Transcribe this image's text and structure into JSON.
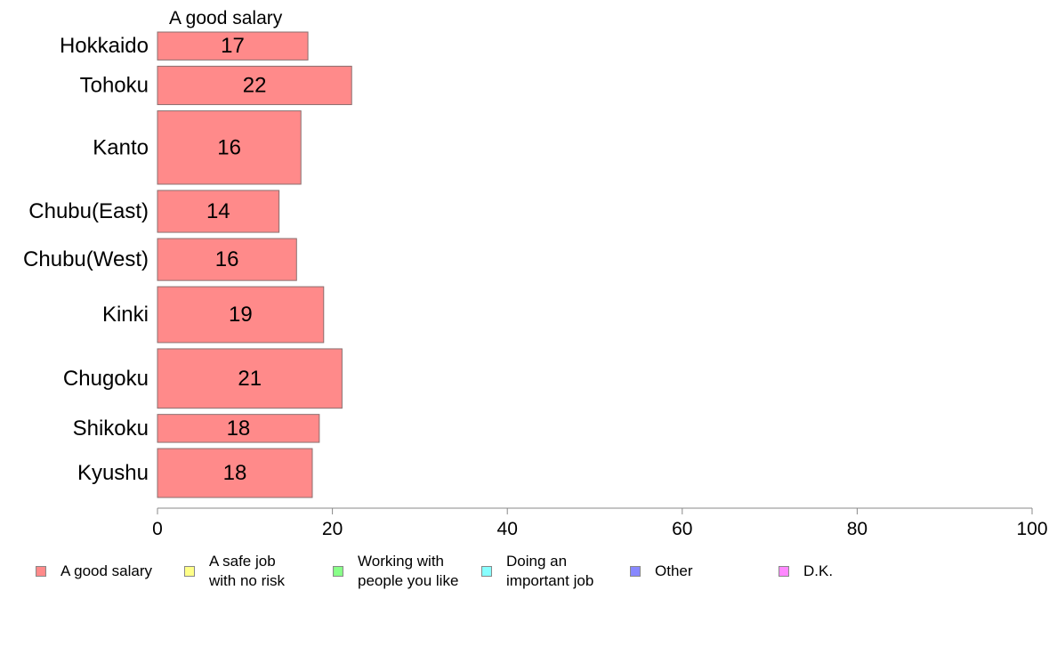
{
  "chart_data": {
    "type": "bar",
    "orientation": "horizontal",
    "title": "A good salary",
    "categories": [
      "Hokkaido",
      "Tohoku",
      "Kanto",
      "Chubu(East)",
      "Chubu(West)",
      "Kinki",
      "Chugoku",
      "Shikoku",
      "Kyushu"
    ],
    "series": [
      {
        "name": "A good salary",
        "color": "#ff8a8a",
        "values": [
          17.2,
          22.2,
          16.4,
          13.9,
          15.9,
          19.0,
          21.1,
          18.5,
          17.7
        ],
        "labels": [
          "17",
          "22",
          "16",
          "14",
          "16",
          "19",
          "21",
          "18",
          "18"
        ]
      }
    ],
    "relative_bar_heights": [
      0.8,
      1.1,
      2.1,
      1.2,
      1.2,
      1.6,
      1.7,
      0.8,
      1.4
    ],
    "xlim": [
      0,
      100
    ],
    "x_ticks": [
      0,
      20,
      40,
      60,
      80,
      100
    ],
    "x_tick_labels": [
      "0",
      "20",
      "40",
      "60",
      "80",
      "100"
    ],
    "xlabel": "",
    "ylabel": "",
    "grid": false,
    "legend_position": "bottom",
    "legend": [
      {
        "label": "A good salary",
        "color": "#ff8a8a"
      },
      {
        "label": "A safe job\nwith no risk",
        "color": "#ffff88"
      },
      {
        "label": "Working with\npeople you like",
        "color": "#88ff88"
      },
      {
        "label": "Doing an\nimportant job",
        "color": "#88ffff"
      },
      {
        "label": "Other",
        "color": "#8888ff"
      },
      {
        "label": "D.K.",
        "color": "#ff88ff"
      }
    ]
  }
}
